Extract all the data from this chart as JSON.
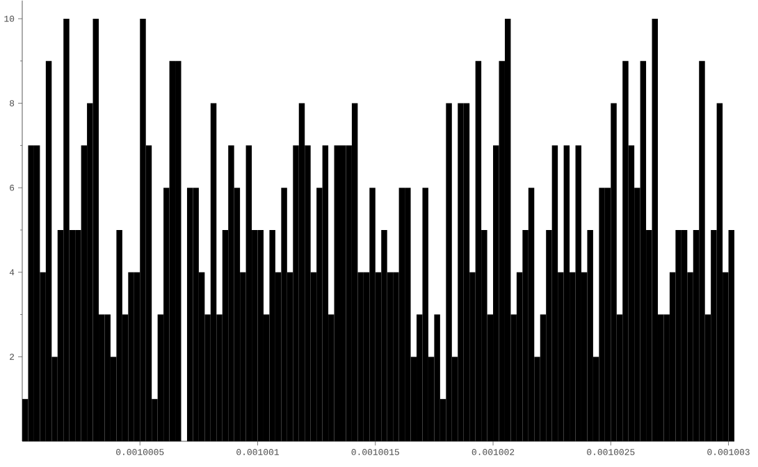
{
  "chart_data": {
    "type": "histogram",
    "bins": [
      0.001,
      0.001000025,
      0.00100005,
      0.001000075,
      0.0010001,
      0.001000125,
      0.00100015,
      0.001000175,
      0.0010002,
      0.001000225,
      0.00100025,
      0.001000275,
      0.0010003,
      0.001000325,
      0.00100035,
      0.001000375,
      0.0010004,
      0.001000425,
      0.00100045,
      0.001000475,
      0.0010005,
      0.001000525,
      0.00100055,
      0.001000575,
      0.0010006,
      0.001000625,
      0.00100065,
      0.001000675,
      0.0010007,
      0.001000725,
      0.00100075,
      0.001000775,
      0.0010008,
      0.001000825,
      0.00100085,
      0.001000875,
      0.0010009,
      0.001000925,
      0.00100095,
      0.001000975,
      0.001001,
      0.001001025,
      0.00100105,
      0.001001075,
      0.0010011,
      0.001001125,
      0.00100115,
      0.001001175,
      0.0010012,
      0.001001225,
      0.00100125,
      0.001001275,
      0.0010013,
      0.001001325,
      0.00100135,
      0.001001375,
      0.0010014,
      0.001001425,
      0.00100145,
      0.001001475,
      0.0010015,
      0.001001525,
      0.00100155,
      0.001001575,
      0.0010016,
      0.001001625,
      0.00100165,
      0.001001675,
      0.0010017,
      0.001001725,
      0.00100175,
      0.001001775,
      0.0010018,
      0.001001825,
      0.00100185,
      0.001001875,
      0.0010019,
      0.001001925,
      0.00100195,
      0.001001975,
      0.001002,
      0.001002025,
      0.00100205,
      0.001002075,
      0.0010021,
      0.001002125,
      0.00100215,
      0.001002175,
      0.0010022,
      0.001002225,
      0.00100225,
      0.001002275,
      0.0010023,
      0.001002325,
      0.00100235,
      0.001002375,
      0.0010024,
      0.001002425,
      0.00100245,
      0.001002475,
      0.0010025,
      0.001002525,
      0.00100255,
      0.001002575,
      0.0010026,
      0.001002625,
      0.00100265,
      0.001002675,
      0.0010027,
      0.001002725,
      0.00100275,
      0.001002775,
      0.0010028,
      0.001002825,
      0.00100285,
      0.001002875,
      0.0010029,
      0.001002925,
      0.00100295,
      0.001002975,
      0.001003,
      0.001003025
    ],
    "values": [
      1,
      7,
      7,
      4,
      9,
      2,
      5,
      10,
      5,
      5,
      7,
      8,
      10,
      3,
      3,
      2,
      5,
      3,
      4,
      4,
      10,
      7,
      1,
      3,
      6,
      9,
      9,
      0,
      6,
      6,
      4,
      3,
      8,
      3,
      5,
      7,
      6,
      4,
      7,
      5,
      5,
      3,
      5,
      4,
      6,
      4,
      7,
      8,
      7,
      4,
      6,
      7,
      3,
      7,
      7,
      7,
      8,
      4,
      4,
      6,
      4,
      5,
      4,
      4,
      6,
      6,
      2,
      3,
      6,
      2,
      3,
      1,
      8,
      2,
      8,
      8,
      4,
      9,
      5,
      3,
      7,
      9,
      10,
      3,
      4,
      5,
      6,
      2,
      3,
      5,
      7,
      4,
      7,
      4,
      7,
      4,
      5,
      2,
      6,
      6,
      8,
      3,
      9,
      7,
      6,
      9,
      5,
      10,
      3,
      3,
      4,
      5,
      5,
      4,
      5,
      9,
      3,
      5,
      8,
      4,
      5
    ],
    "color": "#000000",
    "xlim": [
      0.001,
      0.001003025
    ],
    "ylim": [
      0,
      10.43
    ],
    "xticks": [
      0.0010005,
      0.001001,
      0.0010015,
      0.001002,
      0.0010025,
      0.001003
    ],
    "yticks": [
      2,
      4,
      6,
      8,
      10
    ]
  }
}
